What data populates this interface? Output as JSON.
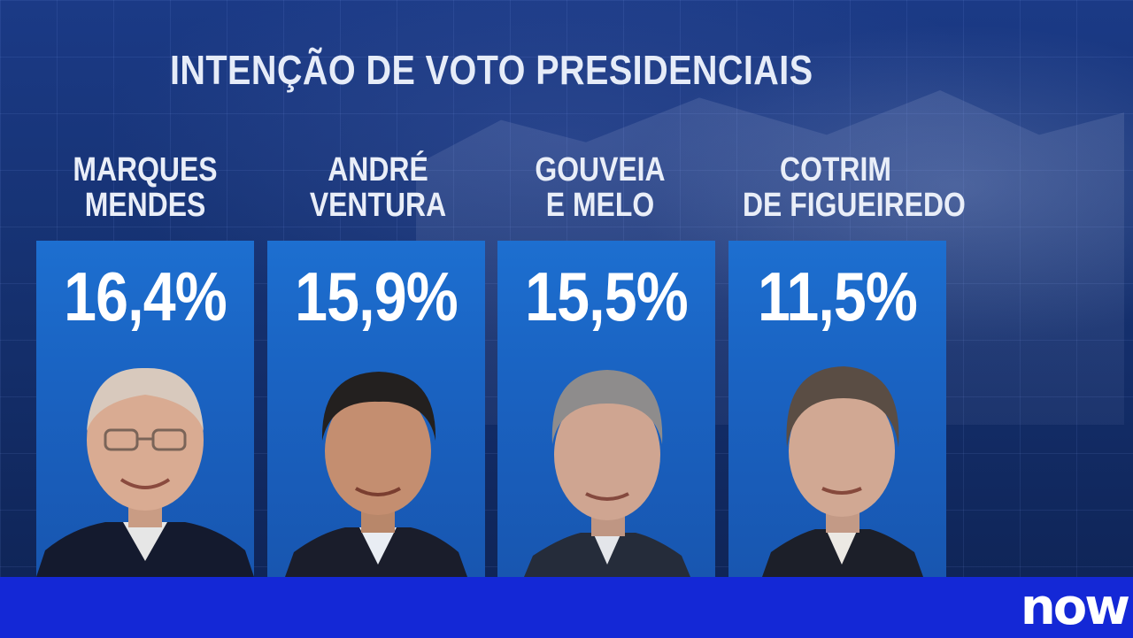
{
  "title": "INTENÇÃO DE VOTO PRESIDENCIAIS",
  "candidates": [
    {
      "name_line1": "MARQUES",
      "name_line2": "MENDES",
      "percent": "16,4%"
    },
    {
      "name_line1": "ANDRÉ",
      "name_line2": "VENTURA",
      "percent": "15,9%"
    },
    {
      "name_line1": "GOUVEIA",
      "name_line2": "E MELO",
      "percent": "15,5%"
    },
    {
      "name_line1": "COTRIM",
      "name_line2": "DE FIGUEIREDO",
      "percent": "11,5%"
    }
  ],
  "logo_text": "now",
  "colors": {
    "background": "#163272",
    "panel": "#1a63c2",
    "bottom_bar": "#1428d6",
    "text": "#ffffff"
  }
}
